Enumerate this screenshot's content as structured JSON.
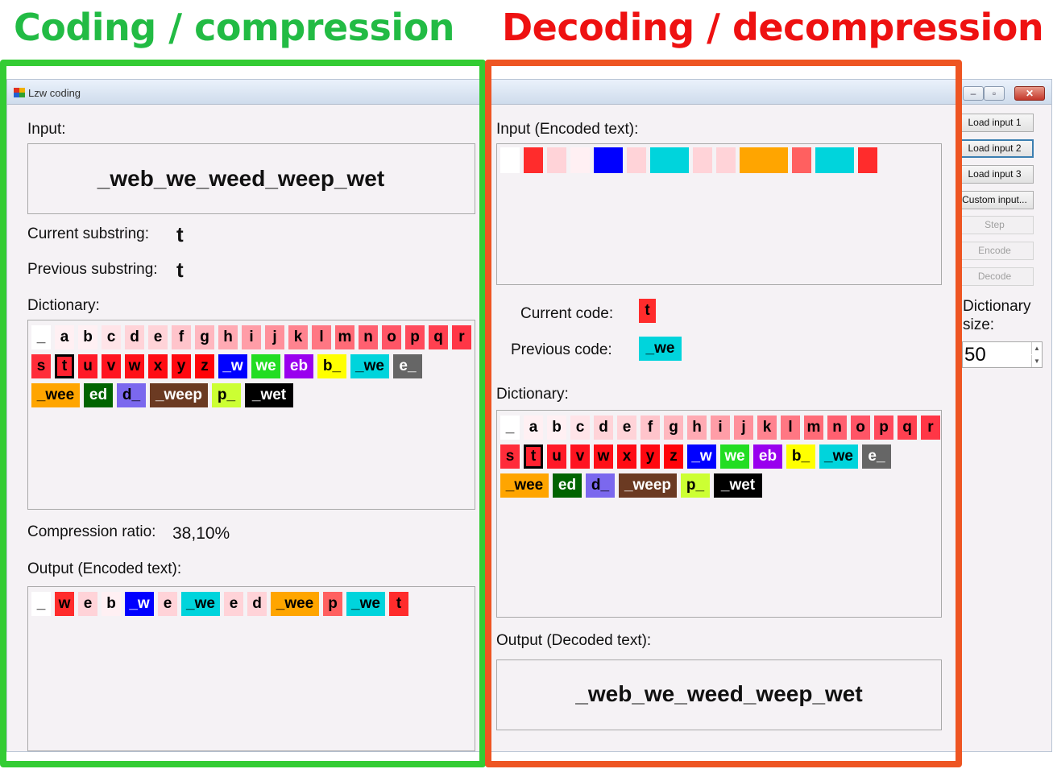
{
  "headings": {
    "left": "Coding / compression",
    "right": "Decoding / decompression"
  },
  "colors": {
    "coding_frame": "#33cc33",
    "decoding_frame": "#ee5522",
    "heading_left": "#22bb44",
    "heading_right": "#ee1111"
  },
  "window": {
    "title": "Lzw coding",
    "minimize_icon": "minimize-icon",
    "maximize_icon": "maximize-icon",
    "close_icon": "close-icon"
  },
  "coding": {
    "input_label": "Input:",
    "input_text": "_web_we_weed_weep_wet",
    "current_label": "Current substring:",
    "current_value": "t",
    "previous_label": "Previous substring:",
    "previous_value": "t",
    "dictionary_label": "Dictionary:",
    "ratio_label": "Compression ratio:",
    "ratio_value": "38,10%",
    "output_label": "Output (Encoded text):",
    "output_chips": [
      {
        "t": "_",
        "c": "#ffffff",
        "f": "#000000"
      },
      {
        "t": "w",
        "c": "#ff2c2c",
        "f": "#000000"
      },
      {
        "t": "e",
        "c": "#ffd3d8",
        "f": "#000000"
      },
      {
        "t": "b",
        "c": "#fff0f3",
        "f": "#000000"
      },
      {
        "t": "_w",
        "c": "#0000ff",
        "f": "#ffffff"
      },
      {
        "t": "e",
        "c": "#ffd3d8",
        "f": "#000000"
      },
      {
        "t": "_we",
        "c": "#00d4dc",
        "f": "#000000"
      },
      {
        "t": "e",
        "c": "#ffd3d8",
        "f": "#000000"
      },
      {
        "t": "d",
        "c": "#ffd3d8",
        "f": "#000000"
      },
      {
        "t": "_wee",
        "c": "#ffa500",
        "f": "#000000"
      },
      {
        "t": "p",
        "c": "#ff6060",
        "f": "#000000"
      },
      {
        "t": "_we",
        "c": "#00d4dc",
        "f": "#000000"
      },
      {
        "t": "t",
        "c": "#ff2c2c",
        "f": "#000000"
      }
    ]
  },
  "decoding": {
    "input_label": "Input (Encoded text):",
    "input_chips": [
      {
        "c": "#ffffff"
      },
      {
        "c": "#ff2c2c"
      },
      {
        "c": "#ffd3d8"
      },
      {
        "c": "#fff0f3"
      },
      {
        "c": "#0000ff"
      },
      {
        "c": "#ffd3d8"
      },
      {
        "c": "#00d4dc"
      },
      {
        "c": "#ffd3d8"
      },
      {
        "c": "#ffd3d8"
      },
      {
        "c": "#ffa500"
      },
      {
        "c": "#ff6060"
      },
      {
        "c": "#00d4dc"
      },
      {
        "c": "#ff2c2c"
      }
    ],
    "current_label": "Current code:",
    "current_value": "t",
    "previous_label": "Previous code:",
    "previous_value": "_we",
    "dictionary_label": "Dictionary:",
    "output_label": "Output (Decoded text):",
    "output_text": "_web_we_weed_weep_wet"
  },
  "dictionary": [
    [
      {
        "t": "_",
        "c": "#ffffff",
        "f": "#000"
      },
      {
        "t": "a",
        "c": "#fff0f3",
        "f": "#000"
      },
      {
        "t": "b",
        "c": "#fff0f3",
        "f": "#000"
      },
      {
        "t": "c",
        "c": "#ffe4e8",
        "f": "#000"
      },
      {
        "t": "d",
        "c": "#ffd3d8",
        "f": "#000"
      },
      {
        "t": "e",
        "c": "#ffd3d8",
        "f": "#000"
      },
      {
        "t": "f",
        "c": "#ffc4cb",
        "f": "#000"
      },
      {
        "t": "g",
        "c": "#ffb7bf",
        "f": "#000"
      },
      {
        "t": "h",
        "c": "#ffaab3",
        "f": "#000"
      },
      {
        "t": "i",
        "c": "#ff9da7",
        "f": "#000"
      },
      {
        "t": "j",
        "c": "#ff909b",
        "f": "#000"
      },
      {
        "t": "k",
        "c": "#ff838f",
        "f": "#000"
      },
      {
        "t": "l",
        "c": "#ff7783",
        "f": "#000"
      },
      {
        "t": "m",
        "c": "#ff6b77",
        "f": "#000"
      },
      {
        "t": "n",
        "c": "#ff6070",
        "f": "#000"
      },
      {
        "t": "o",
        "c": "#ff5566",
        "f": "#000"
      },
      {
        "t": "p",
        "c": "#ff4a5c",
        "f": "#000"
      },
      {
        "t": "q",
        "c": "#ff4050",
        "f": "#000"
      },
      {
        "t": "r",
        "c": "#ff3646",
        "f": "#000"
      }
    ],
    [
      {
        "t": "s",
        "c": "#ff2c3a",
        "f": "#000"
      },
      {
        "t": "t",
        "c": "#ff2230",
        "f": "#000",
        "sel": true
      },
      {
        "t": "u",
        "c": "#ff1a28",
        "f": "#000"
      },
      {
        "t": "v",
        "c": "#ff1420",
        "f": "#000"
      },
      {
        "t": "w",
        "c": "#ff1018",
        "f": "#000"
      },
      {
        "t": "x",
        "c": "#ff0c14",
        "f": "#000"
      },
      {
        "t": "y",
        "c": "#ff0810",
        "f": "#000"
      },
      {
        "t": "z",
        "c": "#ff0408",
        "f": "#000"
      },
      {
        "t": "_w",
        "c": "#0000ff",
        "f": "#fff"
      },
      {
        "t": "we",
        "c": "#22dd22",
        "f": "#fff"
      },
      {
        "t": "eb",
        "c": "#9900ee",
        "f": "#fff"
      },
      {
        "t": "b_",
        "c": "#ffff00",
        "f": "#000"
      },
      {
        "t": "_we",
        "c": "#00d4dc",
        "f": "#000"
      },
      {
        "t": "e_",
        "c": "#666666",
        "f": "#fff"
      }
    ],
    [
      {
        "t": "_wee",
        "c": "#ffa500",
        "f": "#000"
      },
      {
        "t": "ed",
        "c": "#006400",
        "f": "#fff"
      },
      {
        "t": "d_",
        "c": "#7b68ee",
        "f": "#000"
      },
      {
        "t": "_weep",
        "c": "#6b3a22",
        "f": "#fff"
      },
      {
        "t": "p_",
        "c": "#ccff33",
        "f": "#000"
      },
      {
        "t": "_wet",
        "c": "#000000",
        "f": "#fff"
      }
    ]
  ],
  "side_panel": {
    "buttons": [
      "Load input 1",
      "Load input 2",
      "Load input 3",
      "Custom input...",
      "Step",
      "Encode",
      "Decode"
    ],
    "dict_size_label_1": "Dictionary",
    "dict_size_label_2": "size:",
    "dict_size_value": "50"
  }
}
